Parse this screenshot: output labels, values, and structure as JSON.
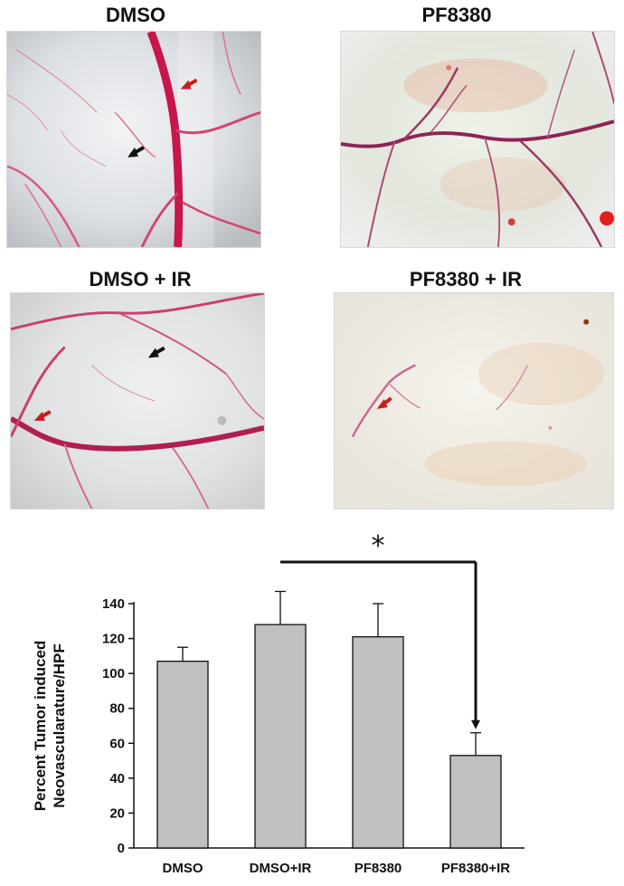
{
  "panels": [
    {
      "title": "DMSO"
    },
    {
      "title": "PF8380"
    },
    {
      "title": "DMSO + IR"
    },
    {
      "title": "PF8380 + IR"
    }
  ],
  "chart_data": {
    "type": "bar",
    "categories": [
      "DMSO",
      "DMSO+IR",
      "PF8380",
      "PF8380+IR"
    ],
    "values": [
      107,
      128,
      121,
      53
    ],
    "errors": [
      8,
      19,
      19,
      13
    ],
    "ylabel_lines": [
      "Percent Tumor induced",
      "Neovascularature/HPF"
    ],
    "ylim": [
      0,
      140
    ],
    "yticks": [
      0,
      20,
      40,
      60,
      80,
      100,
      120,
      140
    ],
    "bar_color": "#c0c0c0",
    "significance": {
      "from": "DMSO+IR",
      "to": "PF8380+IR",
      "symbol": "*"
    }
  }
}
